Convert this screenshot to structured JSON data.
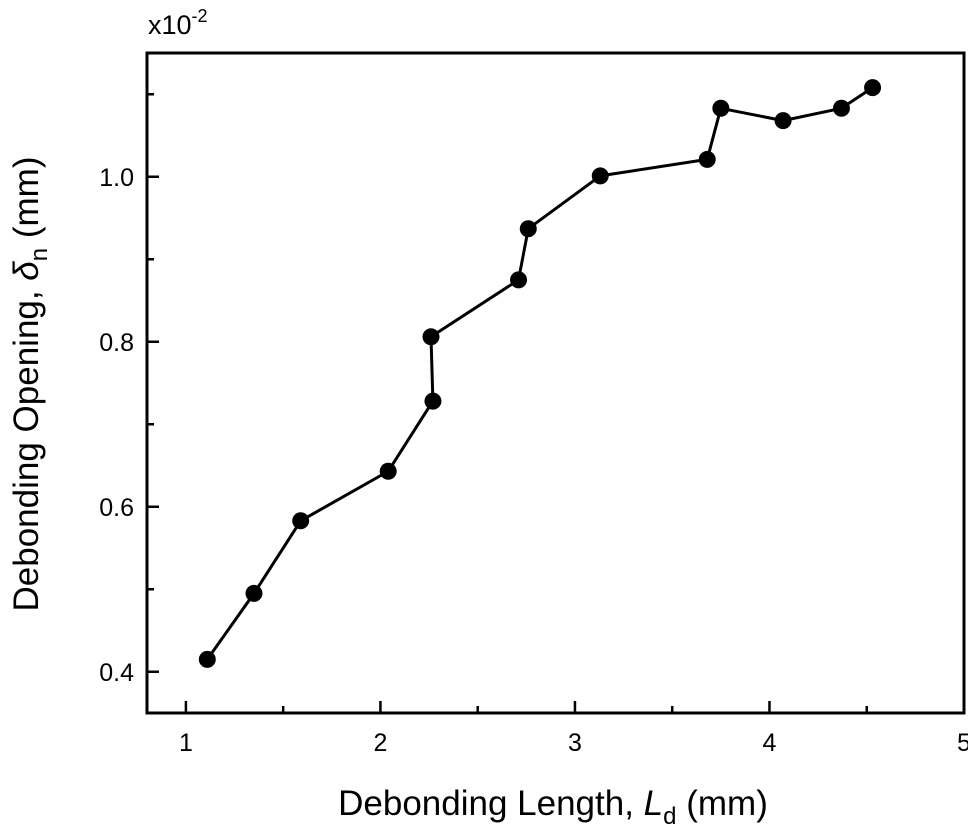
{
  "chart_data": {
    "type": "line",
    "markers": "filled-circle",
    "color": "#000000",
    "xlabel": {
      "main": "Debonding Length, ",
      "symbol": "L",
      "subscript": "d",
      "unit": " (mm)"
    },
    "ylabel": {
      "main": "Debonding Opening, ",
      "symbol": "δ",
      "subscript": "n",
      "unit": " (mm)"
    },
    "y_multiplier": {
      "base": "x10",
      "exponent": "-2"
    },
    "xlim": [
      0.8,
      5.0
    ],
    "ylim": [
      0.35,
      1.15
    ],
    "x_ticks": [
      1,
      2,
      3,
      4,
      5
    ],
    "x_tick_labels": [
      "1",
      "2",
      "3",
      "4",
      "5"
    ],
    "x_minor_ticks": [
      1.5,
      2.5,
      3.5,
      4.5
    ],
    "y_ticks": [
      0.4,
      0.6,
      0.8,
      1.0
    ],
    "y_tick_labels": [
      "0.4",
      "0.6",
      "0.8",
      "1.0"
    ],
    "y_minor_ticks": [
      0.5,
      0.7,
      0.9,
      1.1
    ],
    "grid": false,
    "series": [
      {
        "x": [
          1.11,
          1.35,
          1.59,
          2.04,
          2.27,
          2.26,
          2.71,
          2.76,
          3.13,
          3.68,
          3.75,
          4.07,
          4.37,
          4.53
        ],
        "y": [
          0.415,
          0.495,
          0.583,
          0.643,
          0.728,
          0.806,
          0.875,
          0.937,
          1.001,
          1.021,
          1.083,
          1.068,
          1.083,
          1.108
        ]
      }
    ]
  }
}
